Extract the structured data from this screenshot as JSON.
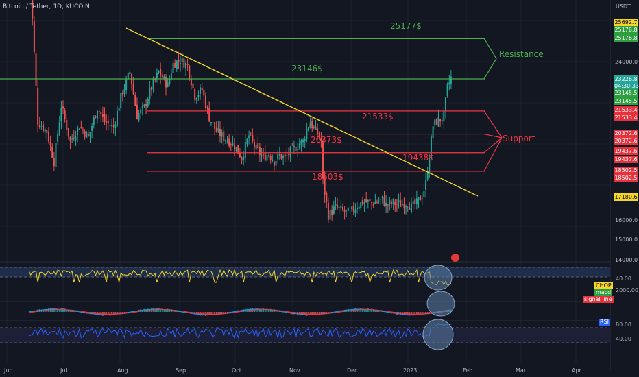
{
  "header": {
    "title": "Bitcoin / Tether, 1D, KUCOIN",
    "currency": "USDT"
  },
  "chart_data": {
    "type": "candlestick",
    "title": "Bitcoin / Tether, 1D, KUCOIN",
    "x_ticks": [
      "Jun",
      "Jul",
      "Aug",
      "Sep",
      "Oct",
      "Nov",
      "Dec",
      "2023",
      "Feb",
      "Mar",
      "Apr"
    ],
    "y_ticks": [
      "24000.0",
      "16000.0",
      "15000.0",
      "14000.0"
    ],
    "price_tags": [
      {
        "label": "25692.7",
        "color": "#f5d52a",
        "text_color": "#000000"
      },
      {
        "label": "25176.8",
        "color": "#2e9e3e",
        "text_color": "#ffffff"
      },
      {
        "label": "25176.8",
        "color": "#2e9e3e",
        "text_color": "#ffffff"
      },
      {
        "label": "23226.8",
        "color": "#26a69a",
        "text_color": "#ffffff"
      },
      {
        "label": "04:30:33",
        "color": "#26a69a",
        "text_color": "#ffffff"
      },
      {
        "label": "23145.5",
        "color": "#2e9e3e",
        "text_color": "#ffffff"
      },
      {
        "label": "23145.5",
        "color": "#2e9e3e",
        "text_color": "#ffffff"
      },
      {
        "label": "21533.4",
        "color": "#e5323d",
        "text_color": "#ffffff"
      },
      {
        "label": "21533.4",
        "color": "#e5323d",
        "text_color": "#ffffff"
      },
      {
        "label": "20372.6",
        "color": "#e5323d",
        "text_color": "#ffffff"
      },
      {
        "label": "20372.6",
        "color": "#e5323d",
        "text_color": "#ffffff"
      },
      {
        "label": "19437.6",
        "color": "#e5323d",
        "text_color": "#ffffff"
      },
      {
        "label": "19437.6",
        "color": "#e5323d",
        "text_color": "#ffffff"
      },
      {
        "label": "18502.5",
        "color": "#e5323d",
        "text_color": "#ffffff"
      },
      {
        "label": "18502.5",
        "color": "#e5323d",
        "text_color": "#ffffff"
      },
      {
        "label": "17180.6",
        "color": "#f5d52a",
        "text_color": "#000000"
      }
    ],
    "levels": [
      {
        "label": "25177$",
        "value": 25177,
        "kind": "resistance",
        "color": "#4caf50"
      },
      {
        "label": "23146$",
        "value": 23146,
        "kind": "resistance",
        "color": "#4caf50"
      },
      {
        "label": "21533$",
        "value": 21533,
        "kind": "support",
        "color": "#f23645"
      },
      {
        "label": "20373$",
        "value": 20373,
        "kind": "support",
        "color": "#f23645"
      },
      {
        "label": "19438$",
        "value": 19438,
        "kind": "support",
        "color": "#f23645"
      },
      {
        "label": "18503$",
        "value": 18503,
        "kind": "support",
        "color": "#f23645"
      }
    ],
    "annotations": {
      "resistance": "Resistance",
      "support": "Support"
    },
    "trendline": {
      "color": "#f5d52a",
      "from": {
        "date": "Jul 31",
        "price": 25700
      },
      "to": {
        "date": "Jan 31",
        "price": 17100
      }
    },
    "series_shape": [
      [
        0,
        29500
      ],
      [
        5,
        21000
      ],
      [
        10,
        20500
      ],
      [
        14,
        19000
      ],
      [
        18,
        21800
      ],
      [
        23,
        20000
      ],
      [
        28,
        20800
      ],
      [
        33,
        20200
      ],
      [
        38,
        21700
      ],
      [
        42,
        21000
      ],
      [
        47,
        20700
      ],
      [
        51,
        22200
      ],
      [
        56,
        23500
      ],
      [
        60,
        21300
      ],
      [
        64,
        21700
      ],
      [
        67,
        22500
      ],
      [
        72,
        23500
      ],
      [
        77,
        22800
      ],
      [
        80,
        23900
      ],
      [
        84,
        24100
      ],
      [
        88,
        23800
      ],
      [
        92,
        22300
      ],
      [
        96,
        22600
      ],
      [
        100,
        21200
      ],
      [
        104,
        20500
      ],
      [
        108,
        20200
      ],
      [
        110,
        20100
      ],
      [
        114,
        19800
      ],
      [
        118,
        19200
      ],
      [
        122,
        20300
      ],
      [
        126,
        19600
      ],
      [
        130,
        19200
      ],
      [
        133,
        19400
      ],
      [
        136,
        19000
      ],
      [
        139,
        19300
      ],
      [
        142,
        19150
      ],
      [
        145,
        19500
      ],
      [
        148,
        19700
      ],
      [
        150,
        19900
      ],
      [
        152,
        20000
      ],
      [
        154,
        20600
      ],
      [
        156,
        21000
      ],
      [
        158,
        20600
      ],
      [
        160,
        20400
      ],
      [
        162,
        20000
      ],
      [
        163,
        18000
      ],
      [
        166,
        16300
      ],
      [
        170,
        16700
      ],
      [
        174,
        16500
      ],
      [
        178,
        16400
      ],
      [
        182,
        16800
      ],
      [
        186,
        17000
      ],
      [
        190,
        16900
      ],
      [
        194,
        17000
      ],
      [
        196,
        17100
      ],
      [
        198,
        16800
      ],
      [
        202,
        16900
      ],
      [
        206,
        16850
      ],
      [
        210,
        16900
      ],
      [
        212,
        16700
      ],
      [
        215,
        16900
      ],
      [
        218,
        17300
      ],
      [
        220,
        17900
      ],
      [
        222,
        19300
      ],
      [
        224,
        20800
      ],
      [
        226,
        21000
      ],
      [
        228,
        21100
      ],
      [
        230,
        21300
      ],
      [
        232,
        22700
      ],
      [
        234,
        23200
      ]
    ],
    "indicators": [
      {
        "name": "CHOP",
        "color": "#f5d52a",
        "ticks": [
          "40.00",
          "2000.00"
        ]
      },
      {
        "name": "macd",
        "color": "#2196f3"
      },
      {
        "name": "signal line",
        "color": "#f23645"
      },
      {
        "name": "RSI",
        "color": "#2962ff",
        "ticks": [
          "80.00",
          "40.00"
        ]
      }
    ],
    "colors": {
      "up": "#26a69a",
      "down": "#ef5350",
      "background": "#131722",
      "grid": "#1e222d"
    }
  }
}
